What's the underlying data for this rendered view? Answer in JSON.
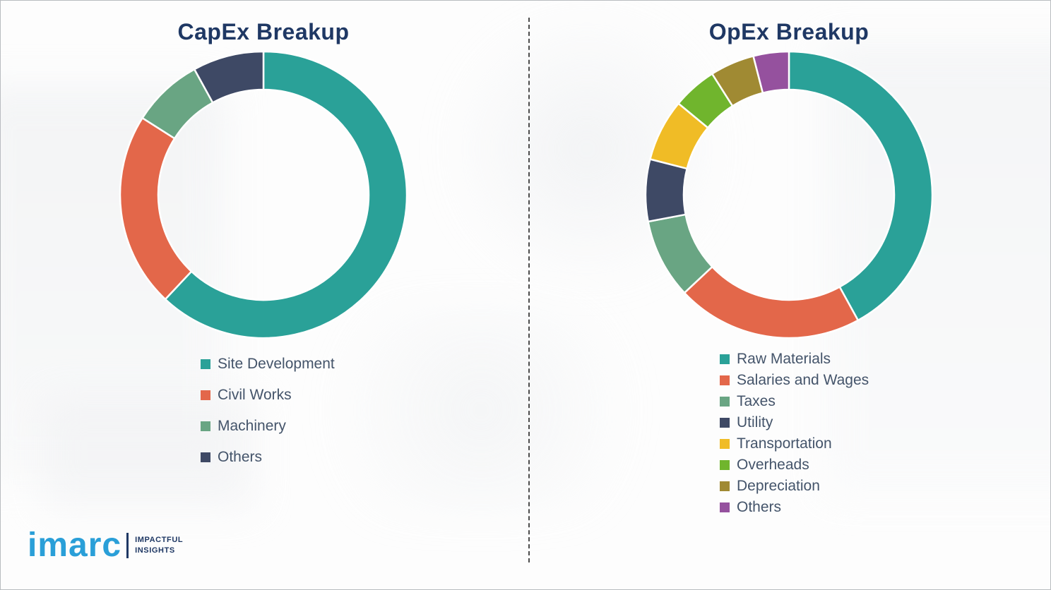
{
  "chart_data": [
    {
      "type": "pie",
      "subtype": "donut",
      "title": "CapEx Breakup",
      "labels": [
        "Site Development",
        "Civil Works",
        "Machinery",
        "Others"
      ],
      "values": [
        62,
        22,
        8,
        8
      ],
      "colors": [
        "#2aa198",
        "#e3674a",
        "#69a583",
        "#3e4965"
      ],
      "legend_position": "below-left",
      "start_angle_deg": 0,
      "direction": "clockwise"
    },
    {
      "type": "pie",
      "subtype": "donut",
      "title": "OpEx Breakup",
      "labels": [
        "Raw Materials",
        "Salaries and Wages",
        "Taxes",
        "Utility",
        "Transportation",
        "Overheads",
        "Depreciation",
        "Others"
      ],
      "values": [
        42,
        21,
        9,
        7,
        7,
        5,
        5,
        4
      ],
      "colors": [
        "#2aa198",
        "#e3674a",
        "#69a583",
        "#3e4965",
        "#f0bc26",
        "#70b52d",
        "#a08a33",
        "#95519e"
      ],
      "legend_position": "below-left",
      "start_angle_deg": 0,
      "direction": "clockwise"
    }
  ],
  "divider": {
    "style": "dashed-vertical"
  },
  "logo": {
    "word": "imarc",
    "tagline_line1": "IMPACTFUL",
    "tagline_line2": "INSIGHTS",
    "word_color": "#2a9fd8",
    "tagline_color": "#1f3864"
  }
}
